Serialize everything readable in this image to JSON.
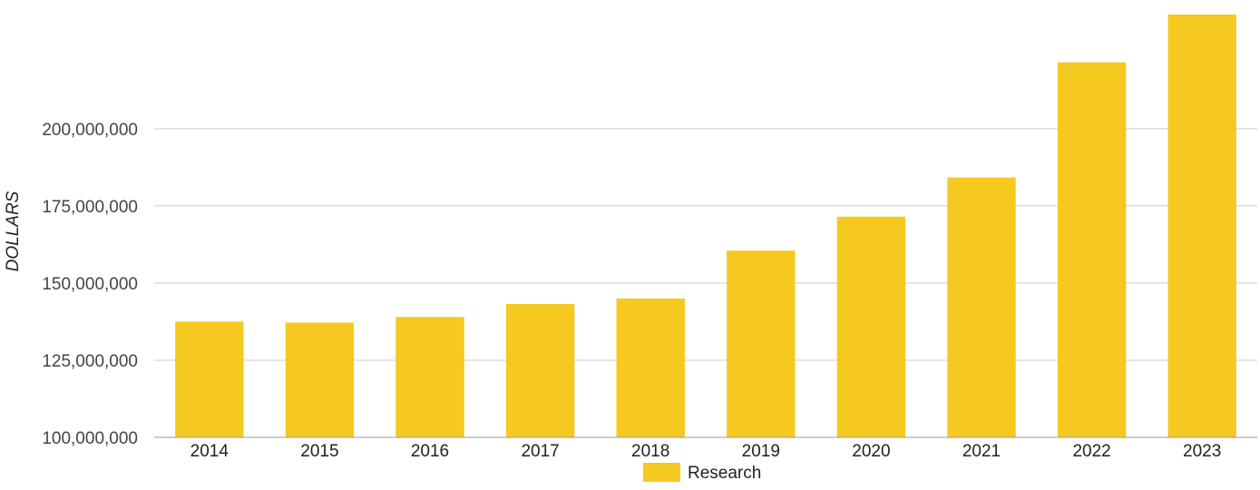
{
  "chart_data": {
    "type": "bar",
    "title": "",
    "xlabel": "",
    "ylabel": "DOLLARS",
    "categories": [
      "2014",
      "2015",
      "2016",
      "2017",
      "2018",
      "2019",
      "2020",
      "2021",
      "2022",
      "2023"
    ],
    "series": [
      {
        "name": "Research",
        "color": "#f5c91f",
        "values": [
          137500000,
          137200000,
          139000000,
          143200000,
          145000000,
          160500000,
          171500000,
          184200000,
          221500000,
          237000000
        ]
      }
    ],
    "ylim": [
      100000000,
      237000000
    ],
    "yticks": [
      100000000,
      125000000,
      150000000,
      175000000,
      200000000
    ],
    "ytick_labels": [
      "100,000,000",
      "125,000,000",
      "150,000,000",
      "175,000,000",
      "200,000,000"
    ],
    "grid": true,
    "legend": "bottom",
    "colors": {
      "bar": "#f5c91f",
      "grid": "#cccccc",
      "axis": "#999999"
    }
  }
}
